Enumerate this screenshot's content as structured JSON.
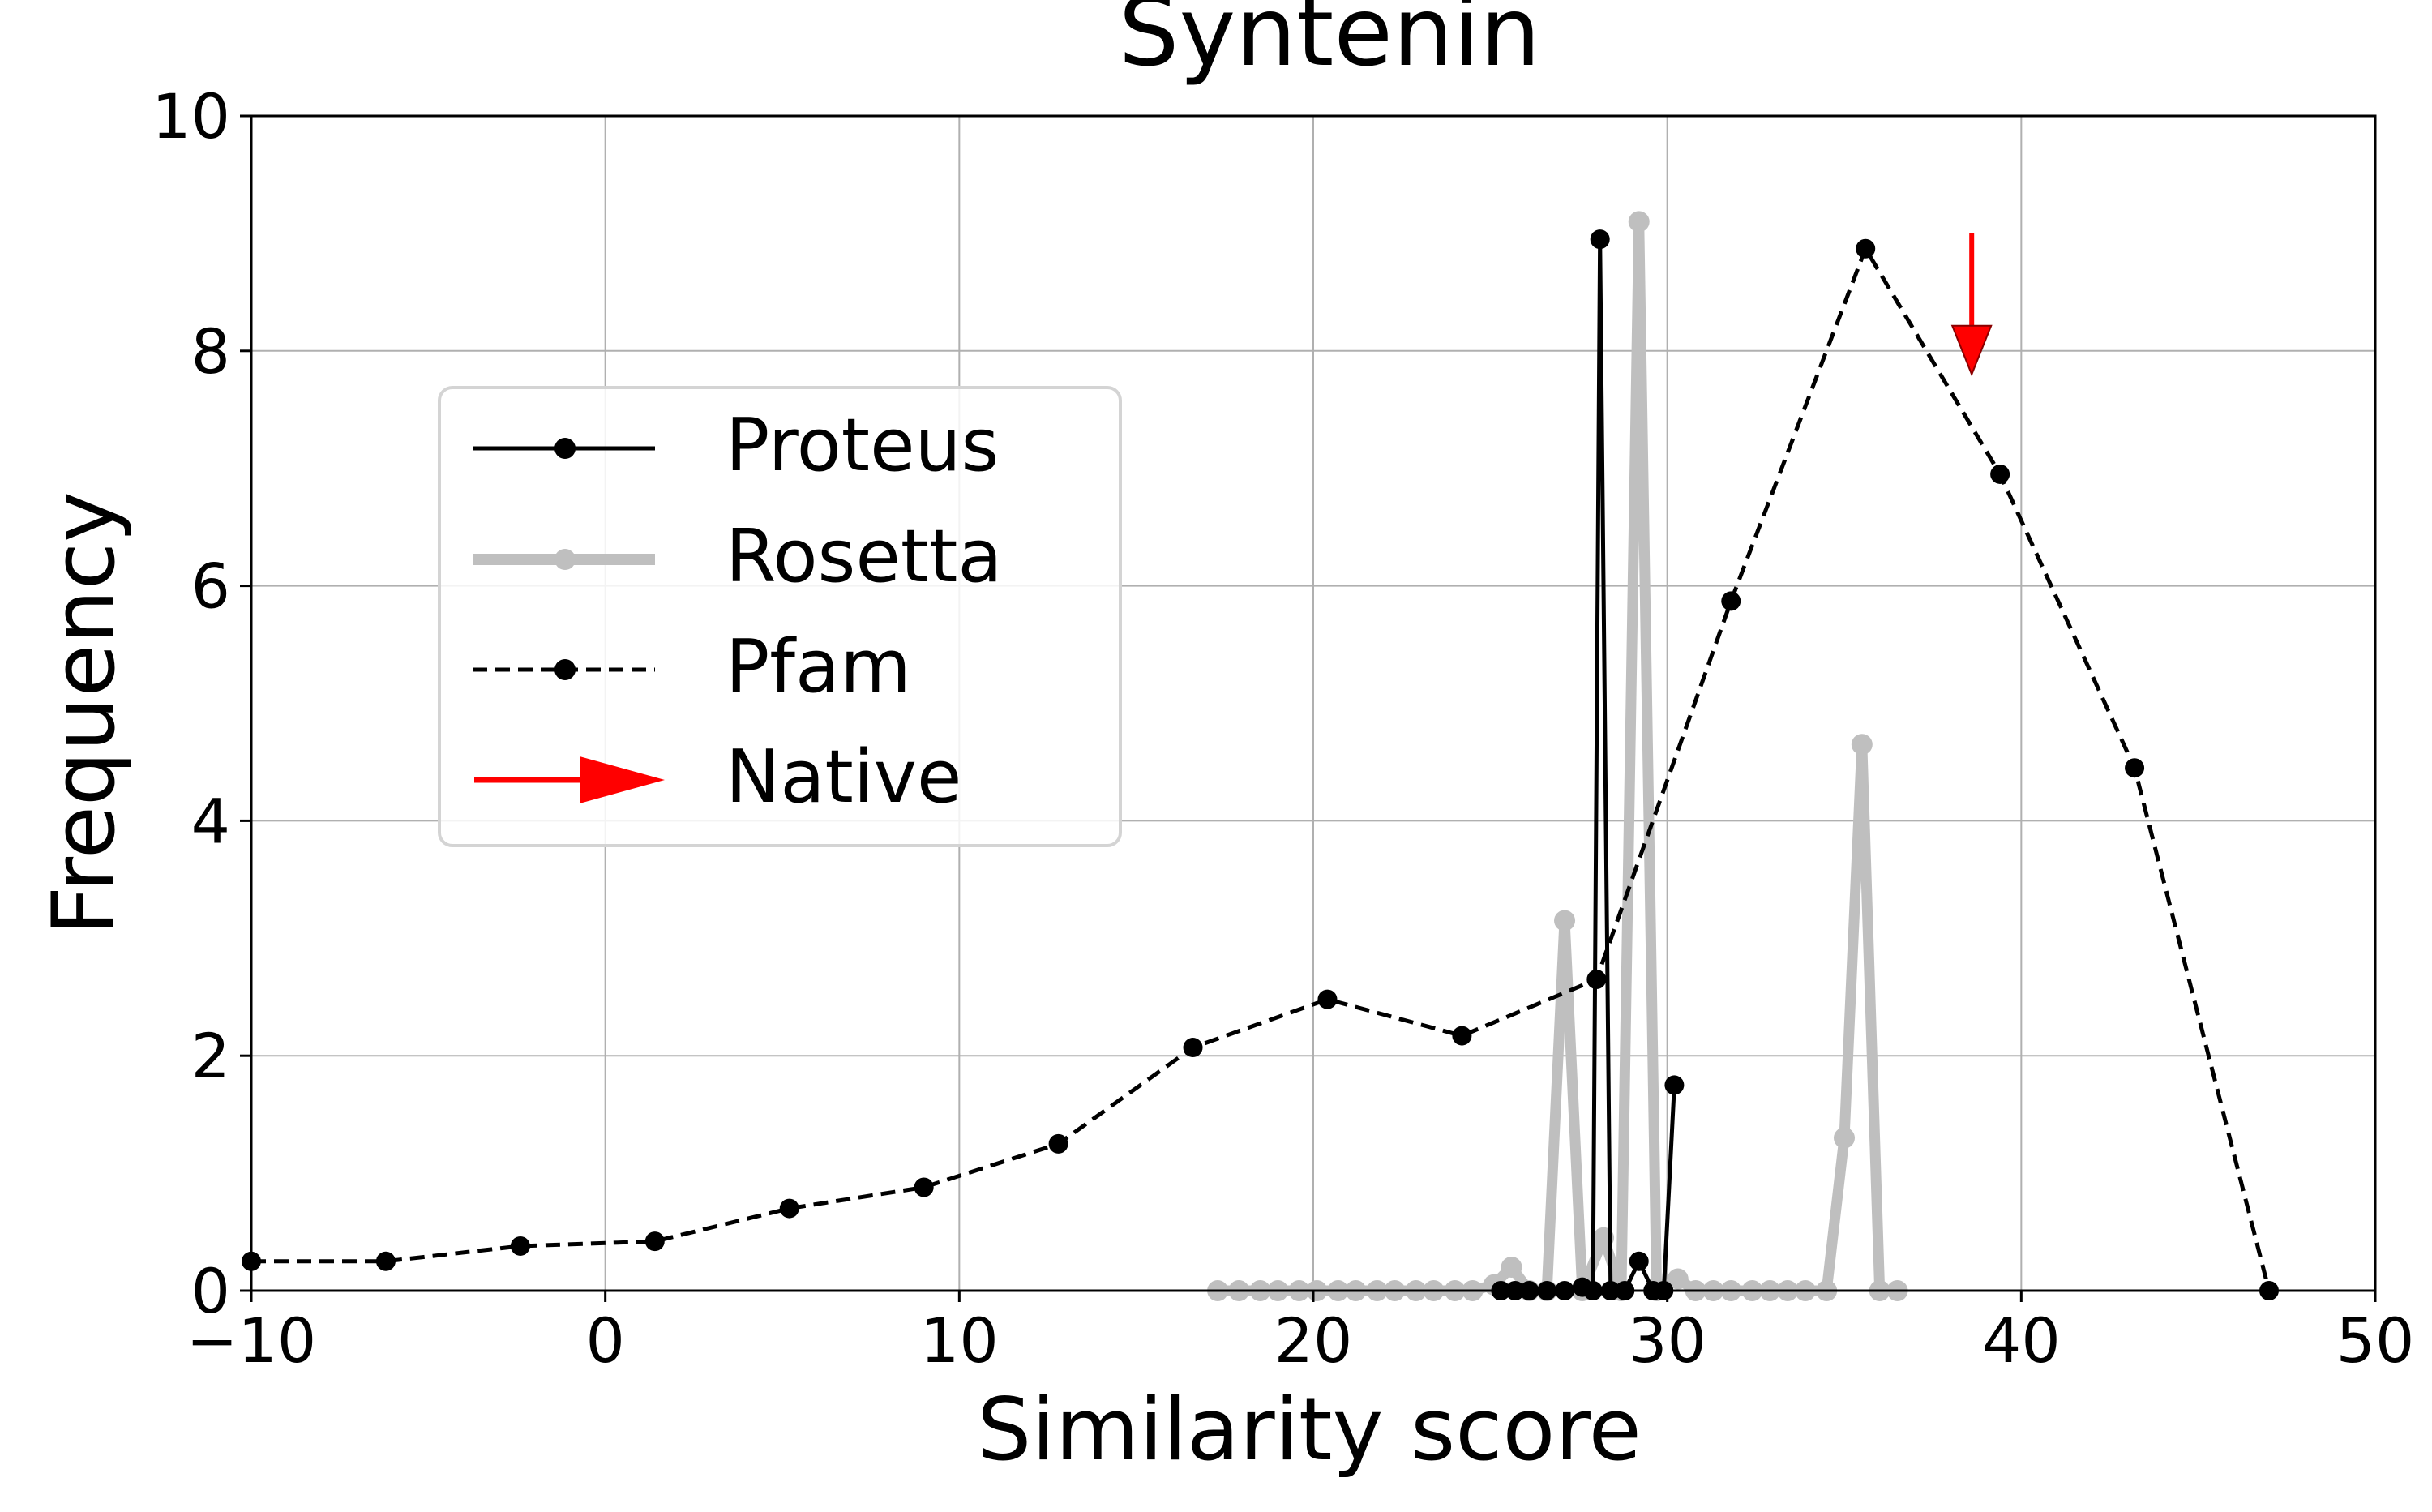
{
  "chart_data": {
    "type": "line",
    "title": "Syntenin",
    "xlabel": "Similarity score",
    "ylabel": "Frequency",
    "xlim": [
      -10,
      50
    ],
    "ylim": [
      0,
      10
    ],
    "xticks": [
      -10,
      0,
      10,
      20,
      30,
      40,
      50
    ],
    "yticks": [
      0,
      2,
      4,
      6,
      8,
      10
    ],
    "grid": true,
    "legend_position": "center-left",
    "series": [
      {
        "name": "Proteus",
        "color": "#000000",
        "style": "solid",
        "x": [
          25.3,
          25.7,
          26.1,
          26.6,
          27.1,
          27.6,
          27.9,
          28.1,
          28.4,
          28.8,
          29.2,
          29.6,
          29.9,
          30.2
        ],
        "y": [
          0,
          0,
          0,
          0,
          0,
          0.03,
          0,
          8.95,
          0,
          0,
          0.25,
          0,
          0,
          1.75
        ]
      },
      {
        "name": "Rosetta",
        "color": "#bfbfbf",
        "style": "solid-thick",
        "x": [
          17.3,
          17.9,
          18.5,
          19.0,
          19.6,
          20.1,
          20.7,
          21.2,
          21.8,
          22.3,
          22.9,
          23.4,
          24.0,
          24.5,
          25.1,
          25.6,
          26.1,
          26.6,
          27.1,
          27.6,
          28.2,
          28.7,
          29.2,
          29.7,
          30.3,
          30.8,
          31.3,
          31.8,
          32.4,
          32.9,
          33.4,
          33.9,
          34.5,
          35.0,
          35.5,
          36.0,
          36.5
        ],
        "y": [
          0,
          0,
          0,
          0,
          0,
          0,
          0,
          0,
          0,
          0,
          0,
          0,
          0,
          0,
          0.05,
          0.2,
          0,
          0,
          3.15,
          0,
          0.45,
          0,
          9.1,
          0,
          0.1,
          0,
          0,
          0,
          0,
          0,
          0,
          0,
          0,
          1.3,
          4.65,
          0,
          0
        ]
      },
      {
        "name": "Pfam",
        "color": "#000000",
        "style": "dashed",
        "x": [
          -10,
          -6.2,
          -2.4,
          1.4,
          5.2,
          9.0,
          12.8,
          16.6,
          20.4,
          24.2,
          28.0,
          31.8,
          35.6,
          39.4,
          43.2,
          47.0
        ],
        "y": [
          0.25,
          0.25,
          0.38,
          0.42,
          0.7,
          0.88,
          1.25,
          2.07,
          2.48,
          2.17,
          2.65,
          5.87,
          8.87,
          6.95,
          4.45,
          0
        ]
      }
    ],
    "native": {
      "name": "Native",
      "x": 38.6,
      "y_top": 9.0,
      "y_bottom": 7.8,
      "color": "#ff0000"
    }
  }
}
